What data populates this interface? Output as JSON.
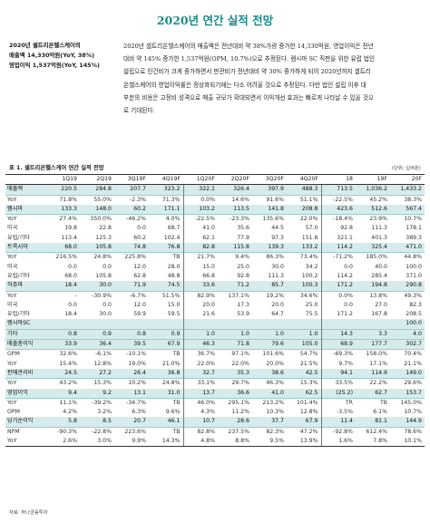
{
  "page_title": "2020년 연간 실적 전망",
  "side": {
    "line1": "2020년 셀트리온헬스케어의",
    "line2": "매출액 14,330억원(YoY, 38%)",
    "line3": "영업이익 1,537억원(YoY, 145%)"
  },
  "body_lines": [
    "2020년 셀트리온헬스케어의 매출액은 전년대비 약 38%가량 증가한 14,330억원, 영업이익은 전년",
    "대비 약 145% 증가한 1,537억원(OPM, 10.7%)으로 추정된다. 램시마 SC 직판을 위한 유럽 법인",
    "설립으로 인건비가 크게 증가하면서 판관비가 전년대비 약 30% 증가하게 되어 2020년까지 셀트리",
    "온헬스케어의 영업이익률은 정상화되기에는 다소 어려울 것으로 추정된다. 다만 법인 설립 이후 대",
    "부분의 비용은 고정비 성격으로 매출 규모가 확대되면서 이익개선 효과는 빠르게 나타날 수 있을 것으",
    "로 기대된다."
  ],
  "table": {
    "title": "표 1. 셀트리온헬스케어 연간 실적 전망",
    "unit": "(단위: 십억원)",
    "headers": [
      "",
      "1Q19",
      "2Q19",
      "3Q19F",
      "4Q19F",
      "1Q20F",
      "2Q20F",
      "3Q20F",
      "4Q20F",
      "18",
      "19F",
      "20F"
    ],
    "rows": [
      {
        "type": "main",
        "label": "매출액",
        "values": [
          "220.5",
          "284.8",
          "207.7",
          "323.2",
          "322.1",
          "326.4",
          "397.9",
          "488.3",
          "713.5",
          "1,036.2",
          "1,433.2"
        ]
      },
      {
        "type": "sub",
        "label": "YoY",
        "values": [
          "71.8%",
          "55.0%",
          "-2.3%",
          "71.3%",
          "0.0%",
          "14.6%",
          "91.6%",
          "51.1%",
          "-22.5%",
          "45.2%",
          "38.3%"
        ]
      },
      {
        "type": "main",
        "label": "램시마",
        "values": [
          "133.3",
          "148.0",
          "60.2",
          "171.1",
          "103.2",
          "113.5",
          "141.8",
          "208.8",
          "423.6",
          "512.6",
          "567.4"
        ]
      },
      {
        "type": "sub",
        "label": "YoY",
        "values": [
          "27.4%",
          "350.0%",
          "-46.2%",
          "4.0%",
          "-22.5%",
          "-23.3%",
          "135.6%",
          "22.0%",
          "-18.4%",
          "23.9%",
          "10.7%"
        ]
      },
      {
        "type": "sub",
        "label": "미국",
        "values": [
          "19.8",
          "22.8",
          "0.0",
          "68.7",
          "41.0",
          "35.6",
          "44.5",
          "57.0",
          "92.8",
          "111.3",
          "178.1"
        ]
      },
      {
        "type": "sub",
        "label": "유럽/기타",
        "values": [
          "113.4",
          "125.3",
          "60.2",
          "102.4",
          "62.1",
          "77.9",
          "97.3",
          "151.8",
          "321.1",
          "401.3",
          "389.3"
        ]
      },
      {
        "type": "main",
        "label": "트룩시마",
        "values": [
          "68.0",
          "105.8",
          "74.8",
          "76.8",
          "82.8",
          "115.8",
          "139.3",
          "133.2",
          "114.2",
          "325.4",
          "471.0"
        ]
      },
      {
        "type": "sub",
        "label": "YoY",
        "values": [
          "216.5%",
          "24.8%",
          "225.8%",
          "TB",
          "21.7%",
          "9.4%",
          "86.3%",
          "73.4%",
          "-71.2%",
          "185.0%",
          "44.8%"
        ]
      },
      {
        "type": "sub",
        "label": "미국",
        "values": [
          "0.0",
          "0.0",
          "12.0",
          "28.0",
          "15.0",
          "25.0",
          "30.0",
          "34.2",
          "0.0",
          "40.0",
          "100.0"
        ]
      },
      {
        "type": "sub",
        "label": "유럽/기타",
        "values": [
          "68.0",
          "105.8",
          "62.8",
          "48.8",
          "66.8",
          "92.8",
          "111.3",
          "100.2",
          "114.2",
          "285.4",
          "371.0"
        ]
      },
      {
        "type": "main",
        "label": "허쥬마",
        "values": [
          "18.4",
          "30.0",
          "71.9",
          "74.5",
          "33.6",
          "71.2",
          "85.7",
          "100.3",
          "171.2",
          "194.8",
          "290.8"
        ]
      },
      {
        "type": "sub",
        "label": "YoY",
        "values": [
          "-",
          "-30.9%",
          "-6.7%",
          "51.5%",
          "82.9%",
          "137.1%",
          "19.2%",
          "34.6%",
          "0.0%",
          "13.8%",
          "49.3%"
        ]
      },
      {
        "type": "sub",
        "label": "미국",
        "values": [
          "0.0",
          "0.0",
          "12.0",
          "15.0",
          "20.0",
          "17.3",
          "20.0",
          "25.0",
          "0.0",
          "27.0",
          "82.3"
        ]
      },
      {
        "type": "sub",
        "label": "유럽/기타",
        "values": [
          "18.4",
          "30.0",
          "59.9",
          "59.5",
          "21.6",
          "53.9",
          "64.7",
          "75.5",
          "171.2",
          "167.8",
          "208.5"
        ]
      },
      {
        "type": "main",
        "label": "램시마SC",
        "values": [
          "",
          "",
          "",
          "",
          "",
          "",
          "",
          "",
          "",
          "",
          "100.0"
        ]
      },
      {
        "type": "main",
        "label": "기타",
        "values": [
          "0.8",
          "0.9",
          "0.8",
          "0.9",
          "1.0",
          "1.0",
          "1.0",
          "1.0",
          "14.3",
          "3.3",
          "4.0"
        ]
      },
      {
        "type": "main",
        "label": "매출총이익",
        "values": [
          "33.9",
          "36.4",
          "39.5",
          "67.9",
          "46.3",
          "71.8",
          "79.6",
          "105.0",
          "68.9",
          "177.7",
          "302.7"
        ]
      },
      {
        "type": "sub",
        "label": "GPM",
        "values": [
          "32.6%",
          "-6.1%",
          "-10.1%",
          "TB",
          "36.7%",
          "97.1%",
          "101.6%",
          "54.7%",
          "-69.3%",
          "158.0%",
          "70.4%"
        ]
      },
      {
        "type": "sub",
        "label": "YoY",
        "values": [
          "15.4%",
          "12.8%",
          "19.0%",
          "21.0%",
          "22.0%",
          "22.0%",
          "20.0%",
          "21.5%",
          "9.7%",
          "17.1%",
          "21.1%"
        ]
      },
      {
        "type": "main",
        "label": "판매관리비",
        "values": [
          "24.5",
          "27.2",
          "26.4",
          "36.8",
          "32.7",
          "35.3",
          "38.6",
          "42.5",
          "94.1",
          "114.9",
          "149.0"
        ]
      },
      {
        "type": "sub",
        "label": "YoY",
        "values": [
          "43.2%",
          "15.3%",
          "10.2%",
          "24.8%",
          "33.1%",
          "29.7%",
          "46.3%",
          "15.3%",
          "33.5%",
          "22.2%",
          "29.6%"
        ]
      },
      {
        "type": "main",
        "label": "영업이익",
        "values": [
          "9.4",
          "9.2",
          "13.1",
          "31.0",
          "13.7",
          "36.6",
          "41.0",
          "62.5",
          "(25.2)",
          "62.7",
          "153.7"
        ]
      },
      {
        "type": "sub",
        "label": "YoY",
        "values": [
          "11.1%",
          "-39.2%",
          "-34.7%",
          "TB",
          "46.0%",
          "295.1%",
          "213.2%",
          "101.4%",
          "TR",
          "TB",
          "145.0%"
        ]
      },
      {
        "type": "sub",
        "label": "OPM",
        "values": [
          "4.2%",
          "3.2%",
          "6.3%",
          "9.6%",
          "4.3%",
          "11.2%",
          "10.3%",
          "12.8%",
          "-3.5%",
          "6.1%",
          "10.7%"
        ]
      },
      {
        "type": "main",
        "label": "당기순이익",
        "values": [
          "5.8",
          "8.5",
          "20.7",
          "46.1",
          "10.7",
          "28.6",
          "37.7",
          "67.9",
          "11.4",
          "81.1",
          "144.9"
        ]
      },
      {
        "type": "sub",
        "label": "NPM",
        "values": [
          "-90.3%",
          "-22.8%",
          "223.6%",
          "TB",
          "82.8%",
          "237.5%",
          "82.3%",
          "47.2%",
          "-92.8%",
          "612.4%",
          "78.6%"
        ]
      },
      {
        "type": "sub",
        "label": "YoY",
        "values": [
          "2.6%",
          "3.0%",
          "9.9%",
          "14.3%",
          "4.8%",
          "8.8%",
          "9.5%",
          "13.9%",
          "1.6%",
          "7.8%",
          "10.1%"
        ]
      }
    ]
  },
  "source": "자료: 하나금융투자"
}
